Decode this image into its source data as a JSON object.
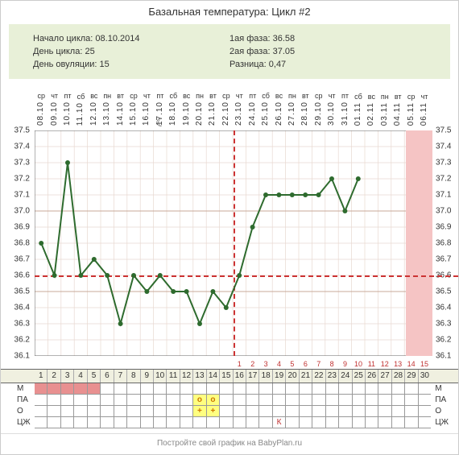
{
  "title": "Базальная температура: Цикл #2",
  "info_left": {
    "start_label": "Начало цикла:",
    "start_value": "08.10.2014",
    "day_label": "День цикла:",
    "day_value": "25",
    "ov_label": "День овуляции:",
    "ov_value": "15"
  },
  "info_right": {
    "p1_label": "1ая фаза:",
    "p1_value": "36.58",
    "p2_label": "2ая фаза:",
    "p2_value": "37.05",
    "diff_label": "Разница:",
    "diff_value": "0,47"
  },
  "dates": [
    {
      "dow": "ср",
      "d": "08.10"
    },
    {
      "dow": "чт",
      "d": "09.10"
    },
    {
      "dow": "пт",
      "d": "10.10"
    },
    {
      "dow": "сб",
      "d": "11.10"
    },
    {
      "dow": "вс",
      "d": "12.10"
    },
    {
      "dow": "пн",
      "d": "13.10"
    },
    {
      "dow": "вт",
      "d": "14.10"
    },
    {
      "dow": "ср",
      "d": "15.10"
    },
    {
      "dow": "чт",
      "d": "16.10"
    },
    {
      "dow": "пт",
      "d": "17.10"
    },
    {
      "dow": "сб",
      "d": "18.10"
    },
    {
      "dow": "вс",
      "d": "19.10"
    },
    {
      "dow": "пн",
      "d": "20.10"
    },
    {
      "dow": "вт",
      "d": "21.10"
    },
    {
      "dow": "ср",
      "d": "22.10"
    },
    {
      "dow": "чт",
      "d": "23.10"
    },
    {
      "dow": "пт",
      "d": "24.10"
    },
    {
      "dow": "сб",
      "d": "25.10"
    },
    {
      "dow": "вс",
      "d": "26.10"
    },
    {
      "dow": "пн",
      "d": "27.10"
    },
    {
      "dow": "вт",
      "d": "28.10"
    },
    {
      "dow": "ср",
      "d": "29.10"
    },
    {
      "dow": "чт",
      "d": "30.10"
    },
    {
      "dow": "пт",
      "d": "31.10"
    },
    {
      "dow": "сб",
      "d": "01.11"
    },
    {
      "dow": "вс",
      "d": "02.11"
    },
    {
      "dow": "пн",
      "d": "03.11"
    },
    {
      "dow": "вт",
      "d": "04.11"
    },
    {
      "dow": "ср",
      "d": "05.11"
    },
    {
      "dow": "чт",
      "d": "06.11"
    }
  ],
  "chart": {
    "ylim": [
      36.1,
      37.5
    ],
    "ytick_step": 0.1,
    "yticks": [
      37.5,
      37.4,
      37.3,
      37.2,
      37.1,
      37.0,
      36.9,
      36.8,
      36.7,
      36.6,
      36.5,
      36.4,
      36.3,
      36.2,
      36.1
    ],
    "n_days": 30,
    "coverline": 36.6,
    "ov_day": 15,
    "late_band_from": 29,
    "moon_day": 10,
    "temps": [
      36.8,
      36.6,
      37.3,
      36.6,
      36.7,
      36.6,
      36.3,
      36.6,
      36.5,
      36.6,
      36.5,
      36.5,
      36.3,
      36.5,
      36.4,
      36.6,
      36.9,
      37.1,
      37.1,
      37.1,
      37.1,
      37.1,
      37.2,
      37.0,
      37.2,
      null,
      null,
      null,
      null,
      null
    ],
    "line_color": "#2e6b2e",
    "point_color": "#2e6b2e",
    "grid_color_minor": "#e8d8d0",
    "grid_color_major": "#c8a898",
    "bg_color": "#ffffff"
  },
  "dpo": [
    "",
    "",
    "",
    "",
    "",
    "",
    "",
    "",
    "",
    "",
    "",
    "",
    "",
    "",
    "",
    "1",
    "2",
    "3",
    "4",
    "5",
    "6",
    "7",
    "8",
    "9",
    "10",
    "11",
    "12",
    "13",
    "14",
    "15"
  ],
  "cycle_days": [
    1,
    2,
    3,
    4,
    5,
    6,
    7,
    8,
    9,
    10,
    11,
    12,
    13,
    14,
    15,
    16,
    17,
    18,
    19,
    20,
    21,
    22,
    23,
    24,
    25,
    26,
    27,
    28,
    29,
    30
  ],
  "sym_rows": [
    "М",
    "ПА",
    "О",
    "ЦЖ"
  ],
  "menses_days": [
    1,
    2,
    3,
    4,
    5
  ],
  "ov_marks": {
    "13": "o",
    "14": "o"
  },
  "ov_plus": {
    "13": "+",
    "14": "+"
  },
  "cervix_k_day": 19,
  "footer": "Постройте свой график на BabyPlan.ru"
}
